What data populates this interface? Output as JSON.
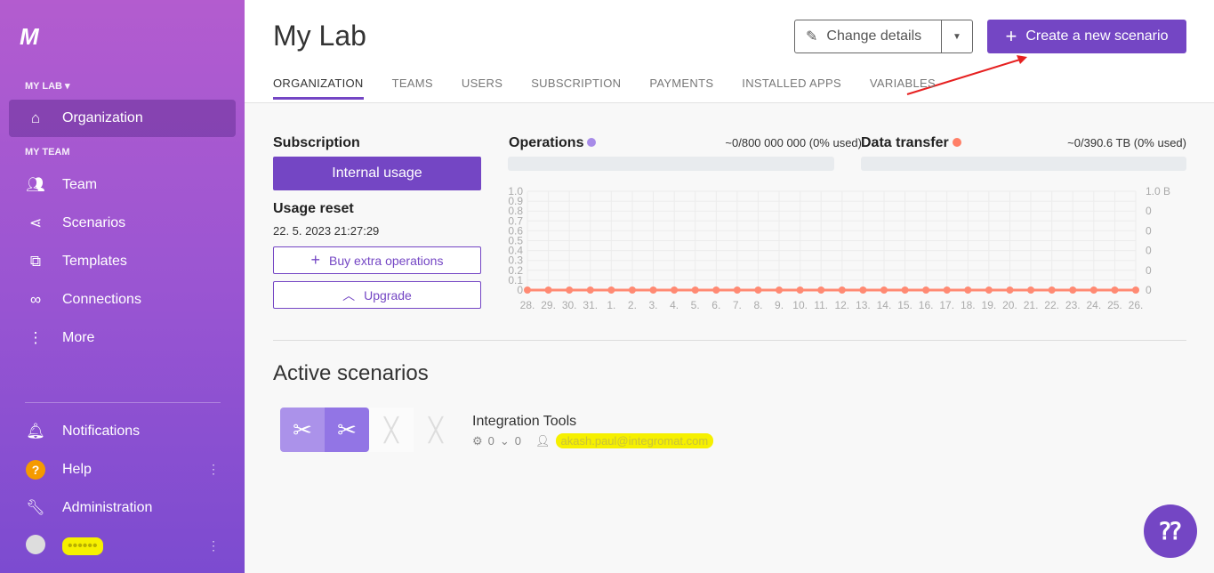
{
  "sidebar": {
    "logo": "M",
    "org_section": "MY LAB ▾",
    "team_section": "MY TEAM",
    "items": [
      {
        "label": "Organization",
        "icon": "home-icon"
      },
      {
        "label": "Team",
        "icon": "users-icon"
      },
      {
        "label": "Scenarios",
        "icon": "share-icon"
      },
      {
        "label": "Templates",
        "icon": "puzzle-icon"
      },
      {
        "label": "Connections",
        "icon": "link-icon"
      },
      {
        "label": "More",
        "icon": "more-vertical-icon"
      }
    ],
    "bottom": [
      {
        "label": "Notifications",
        "icon": "bell-icon"
      },
      {
        "label": "Help",
        "icon": "help-icon"
      },
      {
        "label": "Administration",
        "icon": "wrench-icon"
      }
    ],
    "user_name": "••••••"
  },
  "header": {
    "title": "My Lab",
    "change_details": "Change details",
    "create": "Create a new scenario",
    "tabs": [
      "ORGANIZATION",
      "TEAMS",
      "USERS",
      "SUBSCRIPTION",
      "PAYMENTS",
      "INSTALLED APPS",
      "VARIABLES"
    ]
  },
  "subscription": {
    "label": "Subscription",
    "plan": "Internal usage",
    "reset_label": "Usage reset",
    "reset_date": "22. 5. 2023 21:27:29",
    "buy": "Buy extra operations",
    "upgrade": "Upgrade"
  },
  "operations": {
    "label": "Operations",
    "usage": "~0/800 000 000 (0% used)",
    "color": "#a78be8",
    "fraction": 0
  },
  "data_transfer": {
    "label": "Data transfer",
    "usage": "~0/390.6 TB (0% used)",
    "color": "#ff7f67",
    "fraction": 0
  },
  "chart_data": {
    "type": "line",
    "categories": [
      "28.",
      "29.",
      "30.",
      "31.",
      "1.",
      "2.",
      "3.",
      "4.",
      "5.",
      "6.",
      "7.",
      "8.",
      "9.",
      "10.",
      "11.",
      "12.",
      "13.",
      "14.",
      "15.",
      "16.",
      "17.",
      "18.",
      "19.",
      "20.",
      "21.",
      "22.",
      "23.",
      "24.",
      "25.",
      "26."
    ],
    "y_ticks": [
      "0",
      "0.1",
      "0.2",
      "0.3",
      "0.4",
      "0.5",
      "0.6",
      "0.7",
      "0.8",
      "0.9",
      "1.0"
    ],
    "y2_ticks": [
      "0",
      "0",
      "0",
      "0",
      "0",
      "1.0 B"
    ],
    "ylim": [
      0,
      1
    ],
    "grid": true,
    "series": [
      {
        "values": [
          0,
          0,
          0,
          0,
          0,
          0,
          0,
          0,
          0,
          0,
          0,
          0,
          0,
          0,
          0,
          0,
          0,
          0,
          0,
          0,
          0,
          0,
          0,
          0,
          0,
          0,
          0,
          0,
          0,
          0
        ],
        "color": "#ff8a73"
      }
    ]
  },
  "active": {
    "title": "Active scenarios",
    "scenarios": [
      {
        "name": "Integration Tools",
        "ops": "0",
        "transfer": "0",
        "owner": "akash.paul@integromat.com"
      }
    ]
  }
}
